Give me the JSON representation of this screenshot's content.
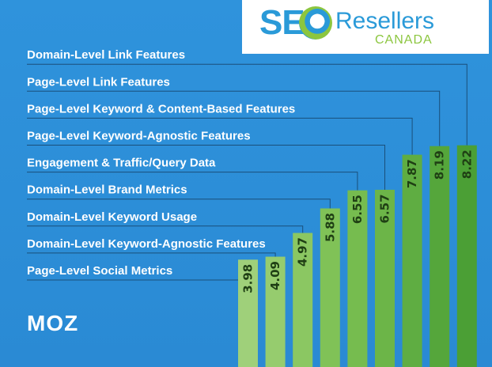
{
  "branding": {
    "seo_text": "SEO",
    "resellers_text": "Resellers",
    "canada_text": "CANADA",
    "moz_text": "MOZ"
  },
  "colors": {
    "background": "#2c8fd8",
    "label": "#ffffff",
    "value_text": "#1f3f14",
    "bar_colors": [
      "#9fd07a",
      "#96cc6e",
      "#8bc762",
      "#80c257",
      "#76bc4f",
      "#6cb548",
      "#5fad42",
      "#55a63b",
      "#4b9f35"
    ]
  },
  "chart_data": {
    "type": "bar",
    "orientation": "vertical",
    "categories": [
      "Page-Level Social Metrics",
      "Domain-Level Keyword-Agnostic Features",
      "Domain-Level Keyword Usage",
      "Domain-Level Brand Metrics",
      "Engagement & Traffic/Query Data",
      "Page-Level Keyword-Agnostic Features",
      "Page-Level Keyword & Content-Based Features",
      "Page-Level Link Features",
      "Domain-Level Link Features"
    ],
    "values": [
      3.98,
      4.09,
      4.97,
      5.88,
      6.55,
      6.57,
      7.87,
      8.19,
      8.22
    ],
    "value_labels": [
      "3.98",
      "4.09",
      "4.97",
      "5.88",
      "6.55",
      "6.57",
      "7.87",
      "8.19",
      "8.22"
    ],
    "data_labels": "rotated, inside bar top",
    "legend": "none",
    "grid": false
  }
}
